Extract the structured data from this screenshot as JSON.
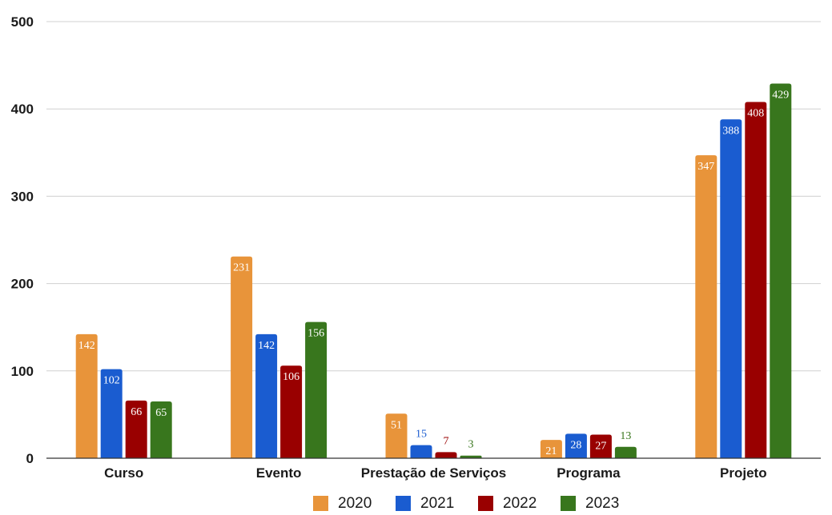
{
  "chart_data": {
    "type": "bar",
    "title": "",
    "xlabel": "",
    "ylabel": "",
    "ylim": [
      0,
      500
    ],
    "yticks": [
      0,
      100,
      200,
      300,
      400,
      500
    ],
    "grid": true,
    "legend_position": "bottom",
    "categories": [
      "Curso",
      "Evento",
      "Prestação de Serviços",
      "Programa",
      "Projeto"
    ],
    "series": [
      {
        "name": "2020",
        "color": "#E8943A",
        "values": [
          142,
          231,
          51,
          21,
          347
        ]
      },
      {
        "name": "2021",
        "color": "#1A5CD0",
        "values": [
          102,
          142,
          15,
          28,
          388
        ]
      },
      {
        "name": "2022",
        "color": "#990000",
        "values": [
          66,
          106,
          7,
          27,
          408
        ]
      },
      {
        "name": "2023",
        "color": "#38761D",
        "values": [
          65,
          156,
          3,
          13,
          429
        ]
      }
    ]
  }
}
